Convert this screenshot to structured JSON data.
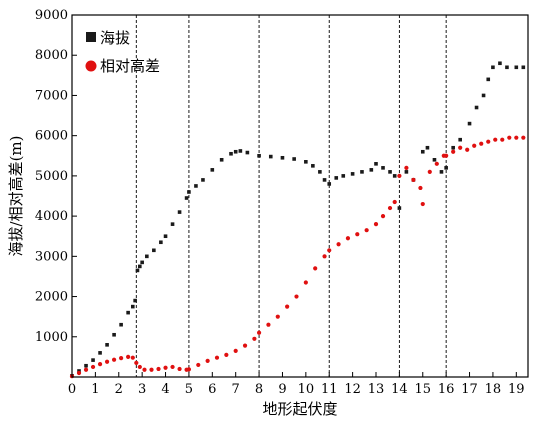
{
  "chart_data": {
    "type": "scatter",
    "title": "",
    "xlabel": "地形起伏度",
    "ylabel": "海拔/相对高差(m)",
    "xlim": [
      0,
      19.5
    ],
    "ylim": [
      0,
      9000
    ],
    "xticks": [
      0,
      1,
      2,
      3,
      4,
      5,
      6,
      7,
      8,
      9,
      10,
      11,
      12,
      13,
      14,
      15,
      16,
      17,
      18,
      19
    ],
    "yticks": [
      1000,
      2000,
      3000,
      4000,
      5000,
      6000,
      7000,
      8000,
      9000
    ],
    "vertical_dashed_lines": [
      2.75,
      5.0,
      8.0,
      11.0,
      14.0,
      16.0
    ],
    "legend_position": "top-left",
    "grid": false,
    "series": [
      {
        "name": "海拔",
        "color": "#1a1a1a",
        "marker": "square",
        "x": [
          0.0,
          0.3,
          0.6,
          0.9,
          1.2,
          1.5,
          1.8,
          2.1,
          2.4,
          2.6,
          2.7,
          2.8,
          2.9,
          3.0,
          3.2,
          3.5,
          3.8,
          4.0,
          4.3,
          4.6,
          4.9,
          5.0,
          5.3,
          5.6,
          6.0,
          6.4,
          6.8,
          7.0,
          7.2,
          7.5,
          8.0,
          8.5,
          9.0,
          9.5,
          10.0,
          10.3,
          10.6,
          10.8,
          11.0,
          11.3,
          11.6,
          12.0,
          12.4,
          12.8,
          13.0,
          13.3,
          13.6,
          13.8,
          14.0,
          14.3,
          14.6,
          15.0,
          15.2,
          15.5,
          15.8,
          16.0,
          16.3,
          16.6,
          17.0,
          17.3,
          17.6,
          17.8,
          18.0,
          18.3,
          18.6,
          19.0,
          19.3
        ],
        "y": [
          30,
          150,
          280,
          420,
          600,
          800,
          1050,
          1300,
          1600,
          1750,
          1900,
          2650,
          2750,
          2850,
          3000,
          3150,
          3350,
          3500,
          3800,
          4100,
          4450,
          4600,
          4750,
          4900,
          5150,
          5400,
          5550,
          5600,
          5620,
          5580,
          5500,
          5480,
          5450,
          5420,
          5350,
          5250,
          5100,
          4900,
          4800,
          4950,
          5000,
          5050,
          5100,
          5150,
          5300,
          5200,
          5100,
          5000,
          4200,
          5100,
          4900,
          5600,
          5700,
          5400,
          5100,
          5200,
          5700,
          5900,
          6300,
          6700,
          7000,
          7400,
          7700,
          7800,
          7700,
          7700,
          7700
        ]
      },
      {
        "name": "相对高差",
        "color": "#e01010",
        "marker": "circle",
        "x": [
          0.0,
          0.3,
          0.6,
          0.9,
          1.2,
          1.5,
          1.8,
          2.1,
          2.4,
          2.6,
          2.75,
          2.9,
          3.1,
          3.4,
          3.7,
          4.0,
          4.3,
          4.6,
          4.9,
          5.0,
          5.4,
          5.8,
          6.2,
          6.6,
          7.0,
          7.4,
          7.8,
          8.0,
          8.4,
          8.8,
          9.2,
          9.6,
          10.0,
          10.4,
          10.8,
          11.0,
          11.4,
          11.8,
          12.2,
          12.6,
          13.0,
          13.3,
          13.6,
          13.8,
          14.0,
          14.3,
          14.6,
          14.9,
          15.0,
          15.3,
          15.6,
          15.9,
          16.0,
          16.3,
          16.6,
          16.9,
          17.2,
          17.5,
          17.8,
          18.1,
          18.4,
          18.7,
          19.0,
          19.3
        ],
        "y": [
          20,
          100,
          180,
          250,
          320,
          380,
          430,
          470,
          500,
          480,
          350,
          250,
          180,
          180,
          200,
          230,
          250,
          200,
          180,
          190,
          300,
          400,
          480,
          550,
          650,
          780,
          950,
          1100,
          1300,
          1500,
          1750,
          2000,
          2350,
          2700,
          3000,
          3150,
          3300,
          3450,
          3550,
          3650,
          3800,
          4000,
          4200,
          4350,
          5000,
          5200,
          4900,
          4700,
          4300,
          5100,
          5300,
          5500,
          5500,
          5600,
          5700,
          5650,
          5750,
          5800,
          5850,
          5900,
          5900,
          5950,
          5950,
          5950
        ]
      }
    ]
  }
}
